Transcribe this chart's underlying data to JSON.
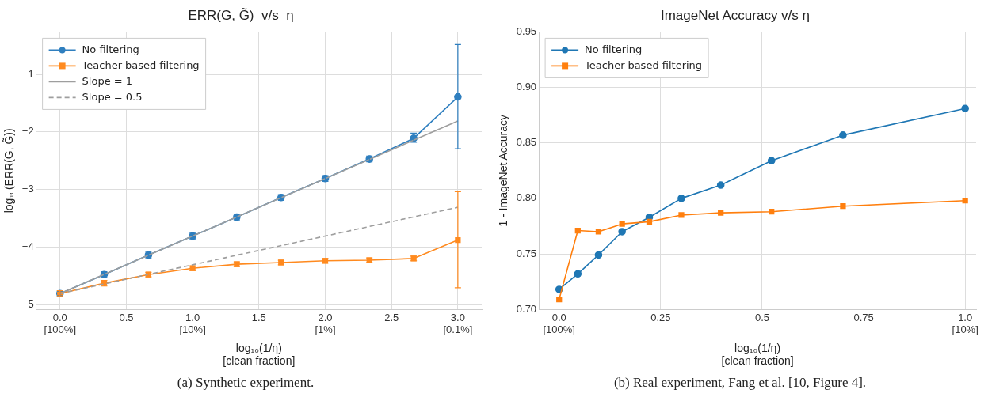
{
  "chart_data": [
    {
      "type": "line",
      "title": "ERR(G, G̃)  v/s  η",
      "xlabel": "log₁₀(1/η)\n[clean fraction]",
      "ylabel": "log₁₀(ERR(G, G̃))",
      "xlim": [
        -0.18,
        3.18
      ],
      "ylim": [
        -5.085,
        -0.26
      ],
      "xticks": [
        {
          "value": 0,
          "label": "0.0\n[100%]"
        },
        {
          "value": 0.5,
          "label": "0.5"
        },
        {
          "value": 1,
          "label": "1.0\n[10%]"
        },
        {
          "value": 1.5,
          "label": "1.5"
        },
        {
          "value": 2,
          "label": "2.0\n[1%]"
        },
        {
          "value": 2.5,
          "label": "2.5"
        },
        {
          "value": 3,
          "label": "3.0\n[0.1%]"
        }
      ],
      "yticks": [
        {
          "value": -5,
          "label": "−5"
        },
        {
          "value": -4,
          "label": "−4"
        },
        {
          "value": -3,
          "label": "−3"
        },
        {
          "value": -2,
          "label": "−2"
        },
        {
          "value": -1,
          "label": "−1"
        }
      ],
      "grid": true,
      "legend": "top left",
      "series": [
        {
          "name": "No filtering",
          "color": "#2f7fbf",
          "marker": "circle",
          "x": [
            0,
            0.333,
            0.667,
            1,
            1.333,
            1.667,
            2,
            2.333,
            2.667,
            3
          ],
          "values": [
            -4.81,
            -4.48,
            -4.14,
            -3.81,
            -3.48,
            -3.14,
            -2.81,
            -2.47,
            -2.11,
            -1.39
          ],
          "errors": [
            0.04,
            0.05,
            0.05,
            0.05,
            0.05,
            0.05,
            0.05,
            0.05,
            [
              -2.18,
              -2.02
            ],
            [
              -2.29,
              -0.48
            ]
          ]
        },
        {
          "name": "Teacher-based filtering",
          "color": "#ff8a1f",
          "marker": "square",
          "x": [
            0,
            0.333,
            0.667,
            1,
            1.333,
            1.667,
            2,
            2.333,
            2.667,
            3
          ],
          "values": [
            -4.81,
            -4.63,
            -4.48,
            -4.37,
            -4.3,
            -4.27,
            -4.24,
            -4.23,
            -4.2,
            -3.88
          ],
          "errors": [
            0.05,
            0.05,
            0.04,
            0.04,
            0.04,
            0.04,
            0.04,
            0.04,
            0.04,
            [
              -4.71,
              -3.04
            ]
          ]
        },
        {
          "name": "Slope = 1",
          "color": "#9e9e9e",
          "line_style": "solid",
          "x": [
            0,
            3
          ],
          "values": [
            -4.81,
            -1.81
          ]
        },
        {
          "name": "Slope = 0.5",
          "color": "#9e9e9e",
          "line_style": "dashed",
          "x": [
            0,
            3
          ],
          "values": [
            -4.81,
            -3.31
          ]
        }
      ],
      "annotations": [
        "(a) Synthetic experiment."
      ]
    },
    {
      "type": "line",
      "title": "ImageNet Accuracy v/s η",
      "xlabel": "log₁₀(1/η)\n[clean fraction]",
      "ylabel": "1 - ImageNet Accuracy",
      "xlim": [
        -0.05,
        1.027
      ],
      "ylim": [
        0.7,
        0.95
      ],
      "xticks": [
        {
          "value": 0,
          "label": "0.0\n[100%]"
        },
        0.25,
        0.5,
        0.75,
        {
          "value": 1,
          "label": "1.0\n[10%]"
        }
      ],
      "yticks": [
        {
          "value": 0.7,
          "label": "0.70"
        },
        0.75,
        {
          "value": 0.8,
          "label": "0.80"
        },
        0.85,
        {
          "value": 0.9,
          "label": "0.90"
        },
        0.95
      ],
      "grid": true,
      "legend": "top left",
      "series": [
        {
          "name": "No filtering",
          "color": "#1f77b4",
          "marker": "circle",
          "x": [
            0,
            0.046,
            0.097,
            0.155,
            0.222,
            0.301,
            0.398,
            0.523,
            0.699,
            1
          ],
          "values": [
            0.718,
            0.732,
            0.749,
            0.77,
            0.783,
            0.8,
            0.812,
            0.834,
            0.857,
            0.881
          ]
        },
        {
          "name": "Teacher-based filtering",
          "color": "#ff7f0e",
          "marker": "square",
          "x": [
            0,
            0.046,
            0.097,
            0.155,
            0.222,
            0.301,
            0.398,
            0.523,
            0.699,
            1
          ],
          "values": [
            0.709,
            0.771,
            0.77,
            0.777,
            0.779,
            0.785,
            0.787,
            0.788,
            0.793,
            0.798
          ]
        }
      ],
      "annotations": [
        "(b) Real experiment, Fang et al. [10, Figure 4]."
      ]
    }
  ]
}
